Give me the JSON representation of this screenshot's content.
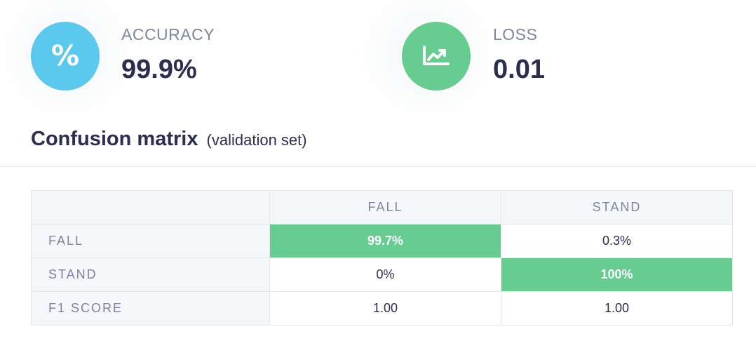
{
  "metrics": {
    "accuracy": {
      "label": "ACCURACY",
      "value": "99.9%",
      "icon": "percent-icon",
      "color": "#5bc8ee"
    },
    "loss": {
      "label": "LOSS",
      "value": "0.01",
      "icon": "trend-chart-icon",
      "color": "#66cc8f"
    }
  },
  "confusion": {
    "title": "Confusion matrix",
    "subtitle": "(validation set)",
    "columns": [
      "FALL",
      "STAND"
    ],
    "rows": [
      {
        "label": "FALL",
        "cells": [
          "99.7%",
          "0.3%"
        ]
      },
      {
        "label": "STAND",
        "cells": [
          "0%",
          "100%"
        ]
      },
      {
        "label": "F1 SCORE",
        "cells": [
          "1.00",
          "1.00"
        ]
      }
    ],
    "highlight_color": "#66cc8f"
  }
}
